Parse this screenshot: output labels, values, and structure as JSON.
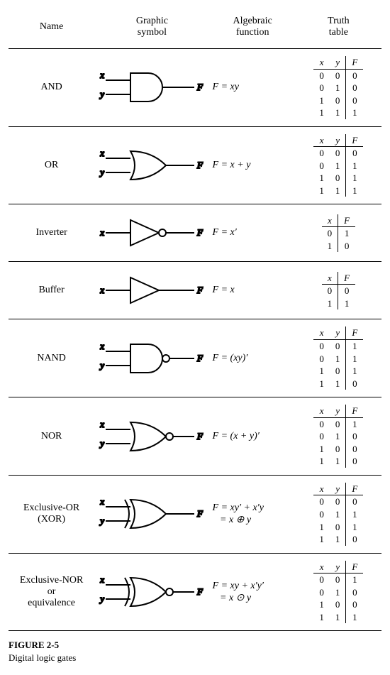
{
  "headers": {
    "name": "Name",
    "symbol": "Graphic\nsymbol",
    "func": "Algebraic\nfunction",
    "tt": "Truth\ntable"
  },
  "gates": [
    {
      "name": "AND",
      "inputs": [
        "x",
        "y"
      ],
      "func_html": "F = xy",
      "shape": "and",
      "bubble": false,
      "xor": false,
      "tt": {
        "cols": [
          "x",
          "y",
          "F"
        ],
        "rows": [
          [
            "0",
            "0",
            "0"
          ],
          [
            "0",
            "1",
            "0"
          ],
          [
            "1",
            "0",
            "0"
          ],
          [
            "1",
            "1",
            "1"
          ]
        ]
      }
    },
    {
      "name": "OR",
      "inputs": [
        "x",
        "y"
      ],
      "func_html": "F = x + y",
      "shape": "or",
      "bubble": false,
      "xor": false,
      "tt": {
        "cols": [
          "x",
          "y",
          "F"
        ],
        "rows": [
          [
            "0",
            "0",
            "0"
          ],
          [
            "0",
            "1",
            "1"
          ],
          [
            "1",
            "0",
            "1"
          ],
          [
            "1",
            "1",
            "1"
          ]
        ]
      }
    },
    {
      "name": "Inverter",
      "inputs": [
        "x"
      ],
      "func_html": "F = x&prime;",
      "shape": "tri",
      "bubble": true,
      "xor": false,
      "tt": {
        "cols": [
          "x",
          "F"
        ],
        "rows": [
          [
            "0",
            "1"
          ],
          [
            "1",
            "0"
          ]
        ]
      }
    },
    {
      "name": "Buffer",
      "inputs": [
        "x"
      ],
      "func_html": "F = x",
      "shape": "tri",
      "bubble": false,
      "xor": false,
      "tt": {
        "cols": [
          "x",
          "F"
        ],
        "rows": [
          [
            "0",
            "0"
          ],
          [
            "1",
            "1"
          ]
        ]
      }
    },
    {
      "name": "NAND",
      "inputs": [
        "x",
        "y"
      ],
      "func_html": "F = (xy)&prime;",
      "shape": "and",
      "bubble": true,
      "xor": false,
      "tt": {
        "cols": [
          "x",
          "y",
          "F"
        ],
        "rows": [
          [
            "0",
            "0",
            "1"
          ],
          [
            "0",
            "1",
            "1"
          ],
          [
            "1",
            "0",
            "1"
          ],
          [
            "1",
            "1",
            "0"
          ]
        ]
      }
    },
    {
      "name": "NOR",
      "inputs": [
        "x",
        "y"
      ],
      "func_html": "F = (x + y)&prime;",
      "shape": "or",
      "bubble": true,
      "xor": false,
      "tt": {
        "cols": [
          "x",
          "y",
          "F"
        ],
        "rows": [
          [
            "0",
            "0",
            "1"
          ],
          [
            "0",
            "1",
            "0"
          ],
          [
            "1",
            "0",
            "0"
          ],
          [
            "1",
            "1",
            "0"
          ]
        ]
      }
    },
    {
      "name": "Exclusive-OR\n(XOR)",
      "inputs": [
        "x",
        "y"
      ],
      "func_html": "F = xy&prime; + x&prime;y<br>&nbsp;&nbsp;&nbsp;= x &oplus; y",
      "shape": "or",
      "bubble": false,
      "xor": true,
      "tt": {
        "cols": [
          "x",
          "y",
          "F"
        ],
        "rows": [
          [
            "0",
            "0",
            "0"
          ],
          [
            "0",
            "1",
            "1"
          ],
          [
            "1",
            "0",
            "1"
          ],
          [
            "1",
            "1",
            "0"
          ]
        ]
      }
    },
    {
      "name": "Exclusive-NOR\nor\nequivalence",
      "inputs": [
        "x",
        "y"
      ],
      "func_html": "F = xy + x&prime;y&prime;<br>&nbsp;&nbsp;&nbsp;= x &odot; y",
      "shape": "or",
      "bubble": true,
      "xor": true,
      "tt": {
        "cols": [
          "x",
          "y",
          "F"
        ],
        "rows": [
          [
            "0",
            "0",
            "1"
          ],
          [
            "0",
            "1",
            "0"
          ],
          [
            "1",
            "0",
            "0"
          ],
          [
            "1",
            "1",
            "1"
          ]
        ]
      }
    }
  ],
  "caption": {
    "title": "FIGURE 2-5",
    "sub": "Digital logic gates"
  },
  "style": {
    "stroke": "#000",
    "stroke_width": 2
  }
}
